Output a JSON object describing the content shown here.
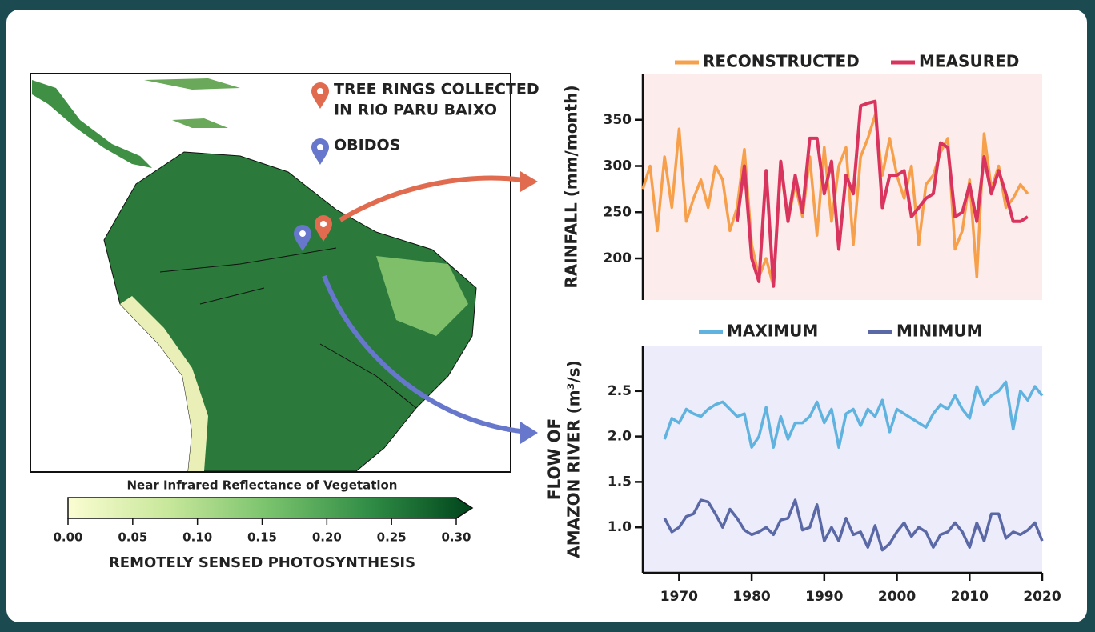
{
  "chart_data": [
    {
      "type": "line",
      "ylabel": "RAINFALL (mm/month)",
      "x": [
        1965,
        1966,
        1967,
        1968,
        1969,
        1970,
        1971,
        1972,
        1973,
        1974,
        1975,
        1976,
        1977,
        1978,
        1979,
        1980,
        1981,
        1982,
        1983,
        1984,
        1985,
        1986,
        1987,
        1988,
        1989,
        1990,
        1991,
        1992,
        1993,
        1994,
        1995,
        1996,
        1997,
        1998,
        1999,
        2000,
        2001,
        2002,
        2003,
        2004,
        2005,
        2006,
        2007,
        2008,
        2009,
        2010,
        2011,
        2012,
        2013,
        2014,
        2015,
        2016,
        2017,
        2018
      ],
      "series": [
        {
          "name": "RECONSTRUCTED",
          "color": "#f7a04b",
          "values": [
            275,
            300,
            230,
            310,
            255,
            340,
            240,
            265,
            285,
            255,
            300,
            285,
            230,
            255,
            318,
            215,
            180,
            200,
            170,
            300,
            240,
            280,
            245,
            310,
            225,
            320,
            240,
            300,
            320,
            215,
            310,
            330,
            355,
            290,
            330,
            290,
            265,
            300,
            215,
            280,
            290,
            315,
            330,
            210,
            230,
            285,
            180,
            335,
            275,
            300,
            255,
            265,
            280,
            270
          ]
        },
        {
          "name": "MEASURED",
          "color": "#d9345e",
          "values": [
            null,
            null,
            null,
            null,
            null,
            null,
            null,
            null,
            null,
            null,
            null,
            null,
            null,
            240,
            300,
            200,
            175,
            295,
            170,
            305,
            240,
            290,
            250,
            330,
            330,
            270,
            305,
            210,
            290,
            270,
            365,
            368,
            370,
            255,
            290,
            290,
            295,
            245,
            255,
            265,
            270,
            325,
            320,
            245,
            250,
            280,
            240,
            310,
            270,
            295,
            270,
            240,
            240,
            245
          ]
        }
      ],
      "xlim": [
        1965,
        2020
      ],
      "ylim": [
        155,
        400
      ],
      "yticks": [
        200,
        250,
        300,
        350
      ],
      "background": "#fdecec"
    },
    {
      "type": "line",
      "ylabel": [
        "FLOW OF",
        "AMAZON RIVER (m³/s)"
      ],
      "x": [
        1968,
        1969,
        1970,
        1971,
        1972,
        1973,
        1974,
        1975,
        1976,
        1977,
        1978,
        1979,
        1980,
        1981,
        1982,
        1983,
        1984,
        1985,
        1986,
        1987,
        1988,
        1989,
        1990,
        1991,
        1992,
        1993,
        1994,
        1995,
        1996,
        1997,
        1998,
        1999,
        2000,
        2001,
        2002,
        2003,
        2004,
        2005,
        2006,
        2007,
        2008,
        2009,
        2010,
        2011,
        2012,
        2013,
        2014,
        2015,
        2016,
        2017,
        2018,
        2019,
        2020
      ],
      "series": [
        {
          "name": "MAXIMUM",
          "color": "#5fb3de",
          "values": [
            1.97,
            2.2,
            2.15,
            2.3,
            2.25,
            2.22,
            2.3,
            2.35,
            2.38,
            2.3,
            2.22,
            2.25,
            1.88,
            2.0,
            2.32,
            1.88,
            2.22,
            1.97,
            2.15,
            2.15,
            2.22,
            2.38,
            2.15,
            2.3,
            1.88,
            2.25,
            2.3,
            2.12,
            2.3,
            2.22,
            2.4,
            2.05,
            2.3,
            2.25,
            2.2,
            2.15,
            2.1,
            2.25,
            2.35,
            2.3,
            2.45,
            2.3,
            2.2,
            2.55,
            2.35,
            2.45,
            2.5,
            2.6,
            2.08,
            2.5,
            2.4,
            2.55,
            2.45
          ]
        },
        {
          "name": "MINIMUM",
          "color": "#5a68a5",
          "values": [
            1.1,
            0.95,
            1.0,
            1.12,
            1.15,
            1.3,
            1.28,
            1.15,
            1.0,
            1.2,
            1.1,
            0.97,
            0.92,
            0.95,
            1.0,
            0.92,
            1.08,
            1.1,
            1.3,
            0.97,
            1.0,
            1.25,
            0.85,
            1.0,
            0.85,
            1.1,
            0.92,
            0.95,
            0.78,
            1.02,
            0.75,
            0.82,
            0.95,
            1.05,
            0.9,
            1.0,
            0.95,
            0.78,
            0.92,
            0.95,
            1.05,
            0.95,
            0.78,
            1.05,
            0.85,
            1.15,
            1.15,
            0.88,
            0.95,
            0.92,
            0.97,
            1.05,
            0.85
          ]
        }
      ],
      "xlim": [
        1965,
        2020
      ],
      "xticks": [
        1970,
        1980,
        1990,
        2000,
        2010,
        2020
      ],
      "ylim": [
        0.5,
        3.0
      ],
      "yticks": [
        {
          "value": 1.0,
          "label": "1.0"
        },
        1.5,
        {
          "value": 2.0,
          "label": "2.0"
        },
        2.5
      ],
      "background": "#ececfb"
    },
    {
      "type": "colorbar",
      "title": "Near Infrared Reflectance of Vegetation",
      "xlabel": "REMOTELY SENSED PHOTOSYNTHESIS",
      "xlim": [
        0,
        0.3
      ],
      "xticks": [
        {
          "value": 0,
          "label": "0.00"
        },
        0.05,
        {
          "value": 0.1,
          "label": "0.10"
        },
        0.15,
        {
          "value": 0.2,
          "label": "0.20"
        },
        0.25,
        {
          "value": 0.3,
          "label": "0.30"
        }
      ],
      "colors": [
        "#fbfdd2",
        "#c7e79a",
        "#78c26c",
        "#2f8c45",
        "#00441b"
      ]
    }
  ],
  "map": {
    "legend": [
      {
        "lines": [
          "TREE RINGS COLLECTED",
          "IN RIO PARU BAIXO"
        ],
        "color": "#e06b4f"
      },
      {
        "lines": [
          "OBIDOS"
        ],
        "color": "#6677cc"
      }
    ]
  }
}
